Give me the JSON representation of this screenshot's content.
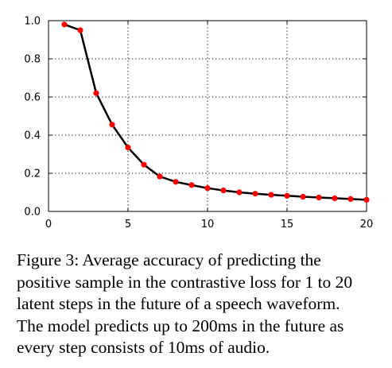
{
  "chart_data": {
    "type": "line",
    "x": [
      1,
      2,
      3,
      4,
      5,
      6,
      7,
      8,
      9,
      10,
      11,
      12,
      13,
      14,
      15,
      16,
      17,
      18,
      19,
      20
    ],
    "series": [
      {
        "values": [
          0.98,
          0.95,
          0.62,
          0.455,
          0.335,
          0.245,
          0.183,
          0.155,
          0.138,
          0.122,
          0.11,
          0.1,
          0.093,
          0.087,
          0.082,
          0.077,
          0.073,
          0.069,
          0.065,
          0.061
        ],
        "line_color": "#000000",
        "marker_color": "#ff0000"
      }
    ],
    "xlim": [
      0,
      20
    ],
    "ylim": [
      0.0,
      1.0
    ],
    "xticks": [
      0,
      5,
      10,
      15,
      20
    ],
    "yticks": [
      0.0,
      0.2,
      0.4,
      0.6,
      0.8,
      1.0
    ],
    "xtick_labels": [
      "0",
      "5",
      "10",
      "15",
      "20"
    ],
    "ytick_labels": [
      "0.0",
      "0.2",
      "0.4",
      "0.6",
      "0.8",
      "1.0"
    ],
    "grid": true,
    "grid_style": "dotted",
    "title": "",
    "xlabel": "",
    "ylabel": ""
  },
  "caption": {
    "lines": [
      "Figure 3:  Average accuracy of predicting the",
      "positive sample in the contrastive loss for 1 to 20",
      "latent steps in the future of a speech waveform.",
      "The model predicts up to 200ms in the future as",
      "every step consists of 10ms of audio."
    ]
  }
}
